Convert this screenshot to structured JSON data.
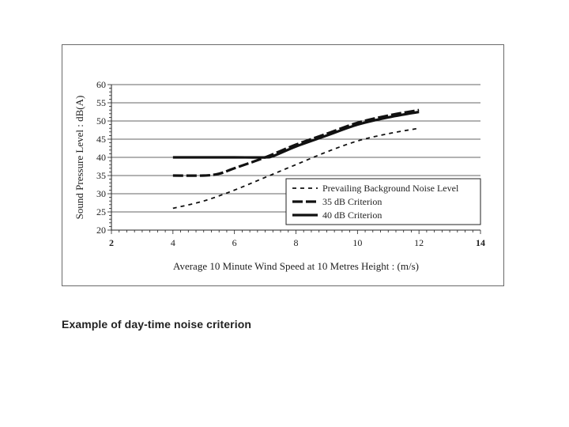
{
  "caption": "Example of day-time noise criterion",
  "chart_data": {
    "type": "line",
    "title": "",
    "xlabel": "Average 10 Minute Wind Speed at 10 Metres Height : (m/s)",
    "ylabel": "Sound Pressure Level : dB(A)",
    "xlim": [
      2,
      14
    ],
    "ylim": [
      20,
      60
    ],
    "x_ticks": [
      "2",
      "4",
      "6",
      "8",
      "10",
      "12",
      "14"
    ],
    "y_ticks": [
      "20",
      "25",
      "30",
      "35",
      "40",
      "45",
      "50",
      "55",
      "60"
    ],
    "grid": "horizontal",
    "legend_position": "bottom-right",
    "series": [
      {
        "name": "Prevailing Background Noise Level",
        "style": "short-dash",
        "x": [
          4,
          5,
          6,
          7,
          8,
          9,
          10,
          11,
          12
        ],
        "y": [
          26,
          28,
          31,
          34.5,
          38,
          41.5,
          44.5,
          46.5,
          48
        ]
      },
      {
        "name": "35 dB Criterion",
        "style": "long-dash-bold",
        "x": [
          4,
          5,
          5.5,
          6,
          7,
          8,
          9,
          10,
          11,
          12
        ],
        "y": [
          35,
          35,
          35.5,
          37,
          40,
          43.5,
          46.5,
          49.5,
          51.5,
          53
        ]
      },
      {
        "name": "40 dB Criterion",
        "style": "solid-bold",
        "x": [
          4,
          5,
          6,
          7,
          7.3,
          8,
          9,
          10,
          11,
          12
        ],
        "y": [
          40,
          40,
          40,
          40,
          40.5,
          43,
          46,
          49,
          51,
          52.5
        ]
      }
    ]
  }
}
